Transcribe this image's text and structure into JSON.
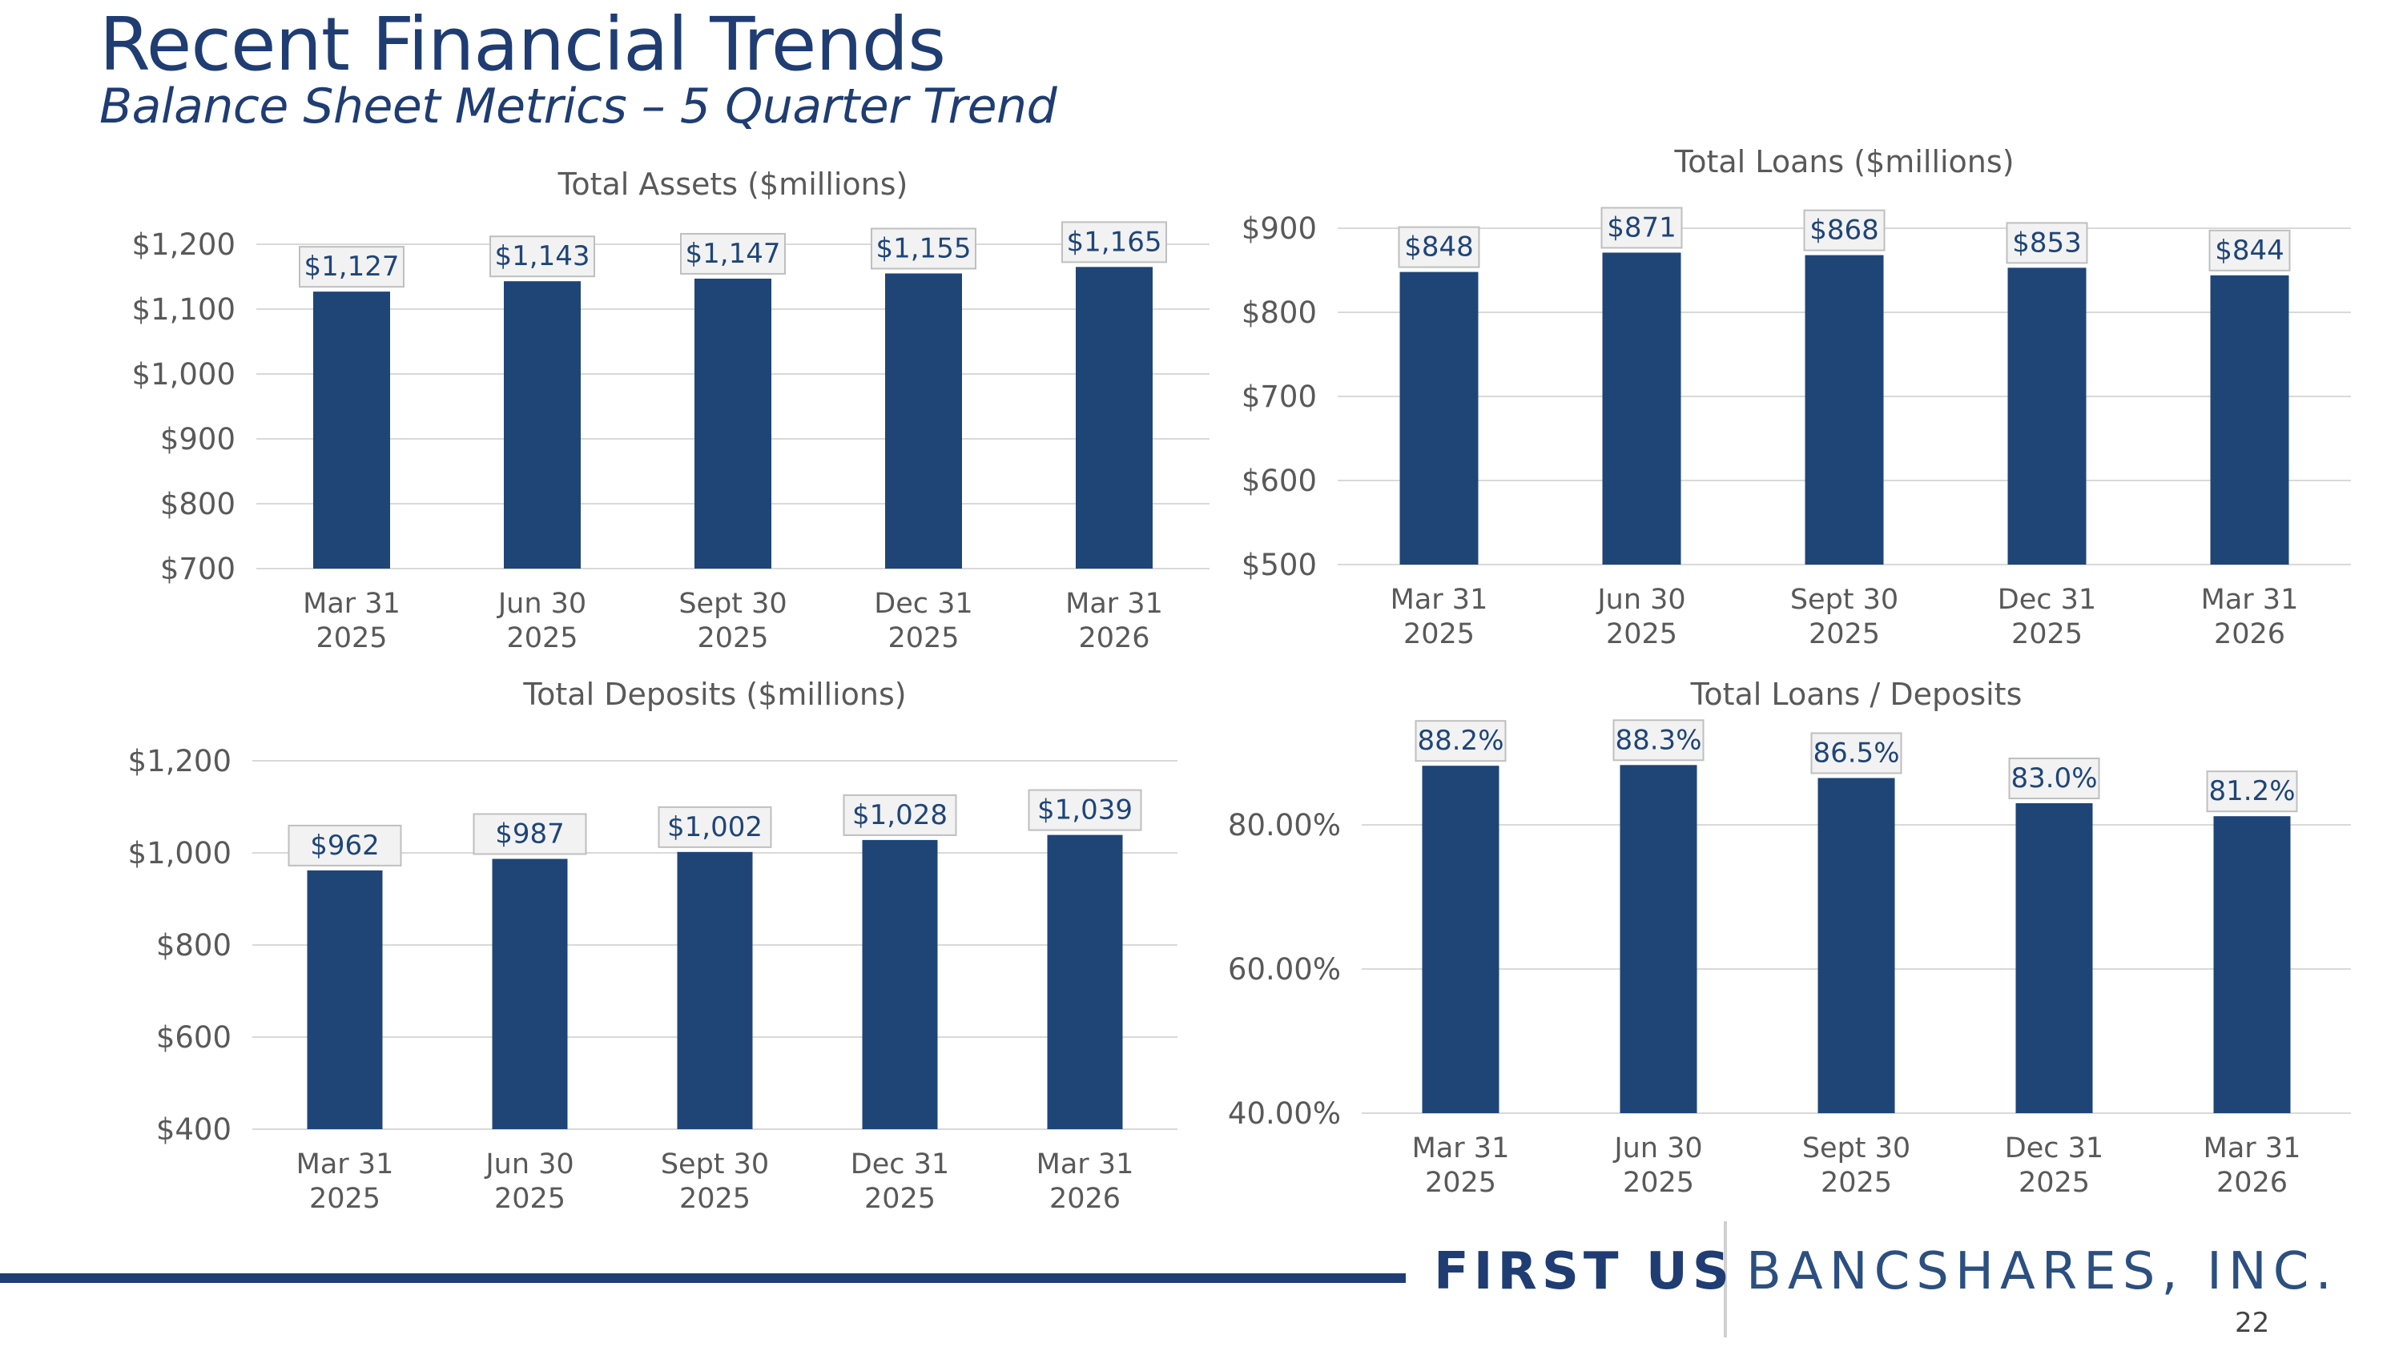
{
  "title": "Recent Financial Trends",
  "subtitle": "Balance Sheet Metrics – 5 Quarter Trend",
  "footer": {
    "logo_first": "FIRST US",
    "logo_rest": "BANCSHARES, INC.",
    "page_number": "22"
  },
  "colors": {
    "bar": "#1f4577",
    "grid": "#d9d9d9",
    "label_box": "#f2f2f2",
    "label_border": "#bfbfbf"
  },
  "chart_data": [
    {
      "type": "bar",
      "title": "Total Assets ($millions)",
      "categories": [
        [
          "Mar 31",
          "2025"
        ],
        [
          "Jun 30",
          "2025"
        ],
        [
          "Sept 30",
          "2025"
        ],
        [
          "Dec 31",
          "2025"
        ],
        [
          "Mar 31",
          "2026"
        ]
      ],
      "values": [
        1127,
        1143,
        1147,
        1155,
        1165
      ],
      "data_labels": [
        "$1,127",
        "$1,143",
        "$1,147",
        "$1,155",
        "$1,165"
      ],
      "ylim": [
        700,
        1200
      ],
      "yticks": [
        700,
        800,
        900,
        1000,
        1100,
        1200
      ],
      "ytick_labels": [
        "$700",
        "$800",
        "$900",
        "$1,000",
        "$1,100",
        "$1,200"
      ],
      "grid": true,
      "legend": "none"
    },
    {
      "type": "bar",
      "title": "Total Loans ($millions)",
      "categories": [
        [
          "Mar 31",
          "2025"
        ],
        [
          "Jun 30",
          "2025"
        ],
        [
          "Sept 30",
          "2025"
        ],
        [
          "Dec 31",
          "2025"
        ],
        [
          "Mar 31",
          "2026"
        ]
      ],
      "values": [
        848,
        871,
        868,
        853,
        844
      ],
      "data_labels": [
        "$848",
        "$871",
        "$868",
        "$853",
        "$844"
      ],
      "ylim": [
        500,
        900
      ],
      "yticks": [
        500,
        600,
        700,
        800,
        900
      ],
      "ytick_labels": [
        "$500",
        "$600",
        "$700",
        "$800",
        "$900"
      ],
      "grid": true,
      "legend": "none"
    },
    {
      "type": "bar",
      "title": "Total Deposits ($millions)",
      "categories": [
        [
          "Mar 31",
          "2025"
        ],
        [
          "Jun 30",
          "2025"
        ],
        [
          "Sept 30",
          "2025"
        ],
        [
          "Dec 31",
          "2025"
        ],
        [
          "Mar 31",
          "2026"
        ]
      ],
      "values": [
        962,
        987,
        1002,
        1028,
        1039
      ],
      "data_labels": [
        "$962",
        "$987",
        "$1,002",
        "$1,028",
        "$1,039"
      ],
      "ylim": [
        400,
        1200
      ],
      "yticks": [
        400,
        600,
        800,
        1000,
        1200
      ],
      "ytick_labels": [
        "$400",
        "$600",
        "$800",
        "$1,000",
        "$1,200"
      ],
      "grid": true,
      "legend": "none"
    },
    {
      "type": "bar",
      "title": "Total Loans / Deposits",
      "categories": [
        [
          "Mar 31",
          "2025"
        ],
        [
          "Jun 30",
          "2025"
        ],
        [
          "Sept 30",
          "2025"
        ],
        [
          "Dec 31",
          "2025"
        ],
        [
          "Mar 31",
          "2026"
        ]
      ],
      "values": [
        88.2,
        88.3,
        86.5,
        83.0,
        81.2
      ],
      "data_labels": [
        "88.2%",
        "88.3%",
        "86.5%",
        "83.0%",
        "81.2%"
      ],
      "ylim": [
        40,
        80
      ],
      "yticks": [
        40,
        60,
        80
      ],
      "ytick_labels": [
        "40.00%",
        "60.00%",
        "80.00%"
      ],
      "grid": true,
      "legend": "none"
    }
  ]
}
